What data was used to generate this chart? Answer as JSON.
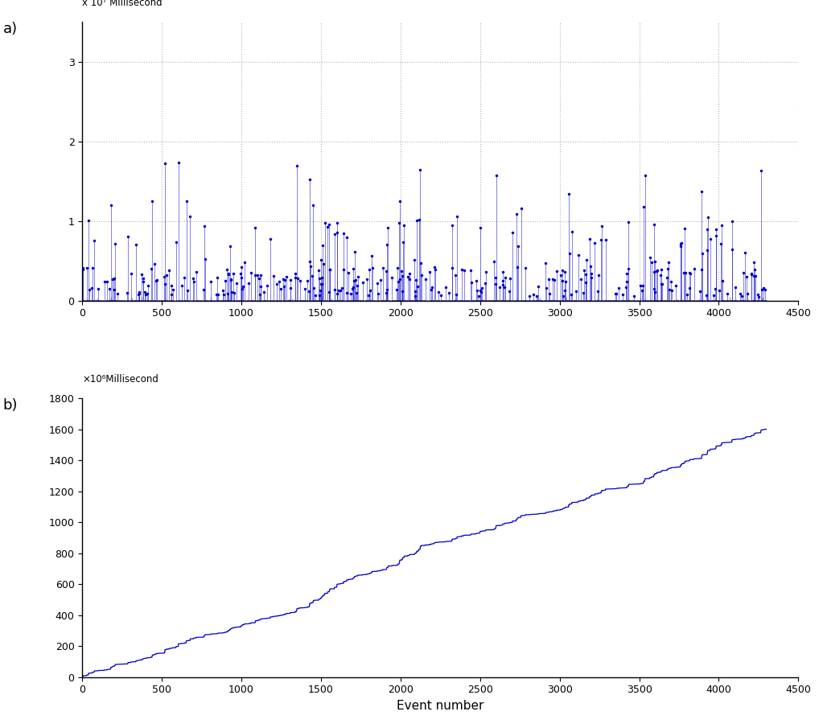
{
  "fig_width": 10.23,
  "fig_height": 9.05,
  "dpi": 100,
  "background_color": "#ffffff",
  "line_color": "#0000cd",
  "grid_color": "#aaaaaa",
  "panel_a": {
    "label": "a)",
    "ylim": [
      0,
      35000000.0
    ],
    "xlim": [
      0,
      4500
    ],
    "yticks": [
      0,
      10000000.0,
      20000000.0,
      30000000.0
    ],
    "ytick_labels": [
      "0",
      "1",
      "2",
      "3"
    ],
    "xticks": [
      0,
      500,
      1000,
      1500,
      2000,
      2500,
      3000,
      3500,
      4000,
      4500
    ],
    "sci_label": "x 10⁷ Millisecond",
    "n_events": 4300
  },
  "panel_b": {
    "label": "b)",
    "xlabel": "Event number",
    "ylim": [
      0,
      1800
    ],
    "xlim": [
      0,
      4500
    ],
    "yticks": [
      0,
      200,
      400,
      600,
      800,
      1000,
      1200,
      1400,
      1600,
      1800
    ],
    "xticks": [
      0,
      500,
      1000,
      1500,
      2000,
      2500,
      3000,
      3500,
      4000,
      4500
    ],
    "sci_label": "×10⁶Millisecond",
    "n_events": 4300
  }
}
